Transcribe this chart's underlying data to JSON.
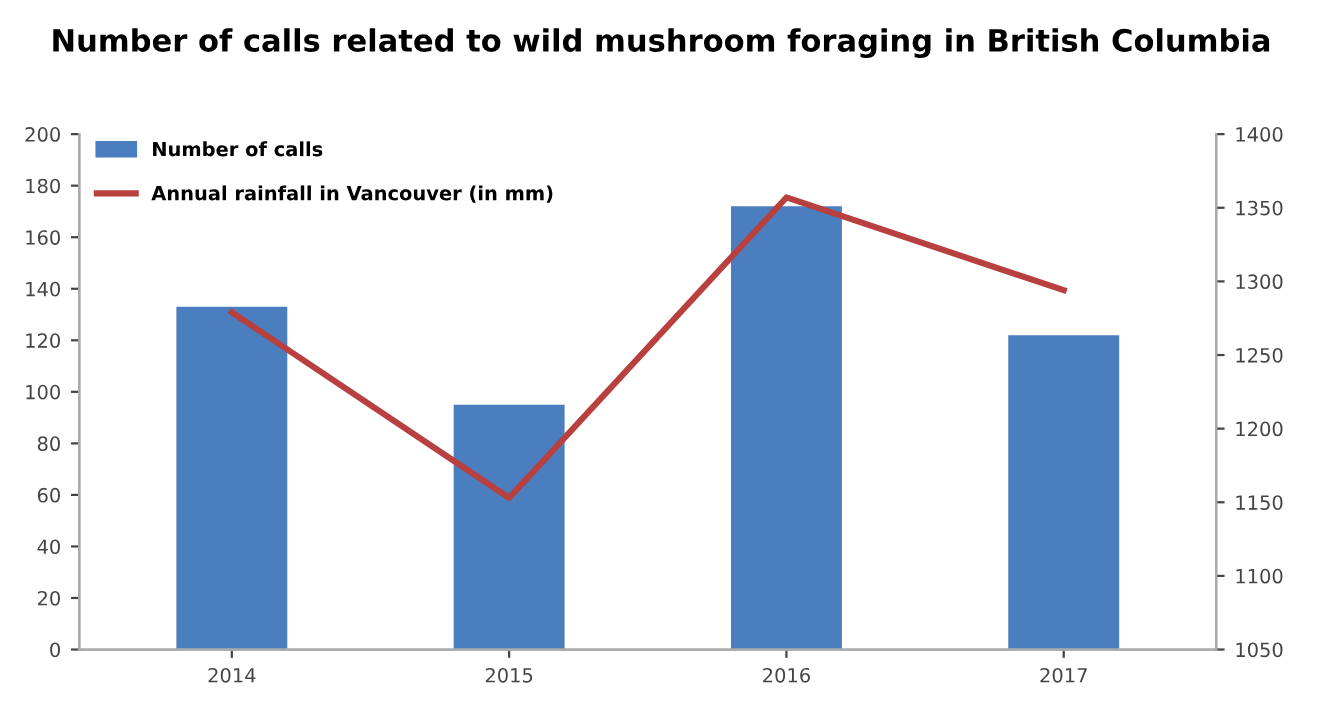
{
  "chart_data": {
    "type": "bar",
    "title": "Number of calls related to wild mushroom foraging in British Columbia",
    "categories": [
      "2014",
      "2015",
      "2016",
      "2017"
    ],
    "series": [
      {
        "name": "Number of calls",
        "color": "#4a7ebf",
        "values": [
          133,
          95,
          172,
          122
        ]
      },
      {
        "name": "Annual rainfall in Vancouver (in mm)",
        "type": "line",
        "axis": "y2",
        "color": "#b8403f",
        "values": [
          1279,
          1153,
          1357,
          1294
        ]
      }
    ],
    "ylim": [
      0,
      200
    ],
    "yticks": [
      0,
      20,
      40,
      60,
      80,
      100,
      120,
      140,
      160,
      180,
      200
    ],
    "y2lim": [
      1050,
      1400
    ],
    "y2ticks": [
      1050,
      1100,
      1150,
      1200,
      1250,
      1300,
      1350,
      1400
    ],
    "grid": false,
    "legend": "top left",
    "marker": "none",
    "line_style": "solid"
  }
}
